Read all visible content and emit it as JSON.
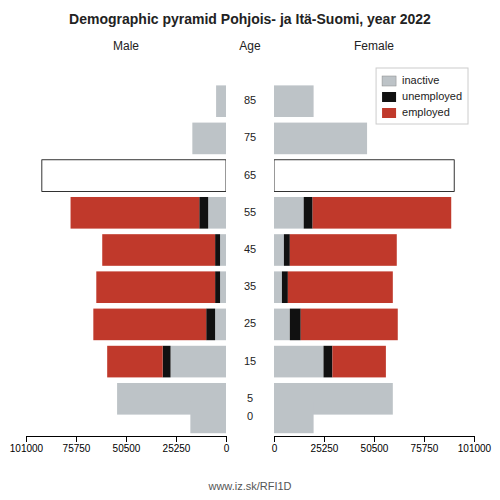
{
  "chart_data": [
    {
      "type": "bar",
      "orientation": "horizontal",
      "stacked": true,
      "title": "Demographic pyramid Pohjois- ja Itä-Suomi, year 2022",
      "xlabel": "Male",
      "ylabel": "Age",
      "y": [
        85,
        75,
        65,
        55,
        45,
        35,
        25,
        15,
        5,
        0
      ],
      "ylim": [
        -5,
        95
      ],
      "yticks": [
        85,
        75,
        65,
        55,
        45,
        35,
        25,
        15,
        5,
        0
      ],
      "xlim": [
        101000,
        0
      ],
      "xticks": [
        0,
        25250,
        50500,
        75750,
        101000
      ],
      "grid": false,
      "series": [
        {
          "name": "inactive",
          "color": "#bdc3c7",
          "values": [
            5000,
            17000,
            0,
            9000,
            3000,
            3000,
            5500,
            28000,
            55000,
            18000
          ]
        },
        {
          "name": "unemployed",
          "color": "#111111",
          "values": [
            0,
            0,
            0,
            4500,
            2500,
            2500,
            4500,
            4000,
            0,
            0
          ]
        },
        {
          "name": "employed",
          "color": "#c0392b",
          "values": [
            0,
            0,
            0,
            65000,
            57000,
            60000,
            57000,
            28000,
            0,
            0
          ]
        },
        {
          "type": "outline",
          "color": "#ffffff",
          "values": [
            null,
            null,
            93000,
            null,
            null,
            null,
            null,
            null,
            null,
            null
          ]
        }
      ],
      "annotations": [
        "www.iz.sk/RFI1D"
      ]
    },
    {
      "type": "bar",
      "orientation": "horizontal",
      "stacked": true,
      "xlabel": "Female",
      "y": [
        85,
        75,
        65,
        55,
        45,
        35,
        25,
        15,
        5,
        0
      ],
      "ylim": [
        -5,
        95
      ],
      "xlim": [
        0,
        101000
      ],
      "xticks": [
        0,
        25250,
        50500,
        75750,
        101000
      ],
      "grid": false,
      "legend": "upper right",
      "tick_labels": "x",
      "series": [
        {
          "name": "inactive",
          "color": "#bdc3c7",
          "values": [
            20000,
            47000,
            0,
            15000,
            5000,
            4000,
            8000,
            25000,
            60000,
            20000
          ]
        },
        {
          "name": "unemployed",
          "color": "#111111",
          "values": [
            0,
            0,
            0,
            4500,
            3000,
            3000,
            5500,
            4500,
            0,
            0
          ]
        },
        {
          "name": "employed",
          "color": "#c0392b",
          "values": [
            0,
            0,
            0,
            70000,
            54000,
            53000,
            49000,
            27000,
            0,
            0
          ]
        },
        {
          "type": "outline",
          "color": "#ffffff",
          "values": [
            null,
            null,
            91000,
            null,
            null,
            null,
            null,
            null,
            null,
            null
          ]
        }
      ]
    }
  ]
}
